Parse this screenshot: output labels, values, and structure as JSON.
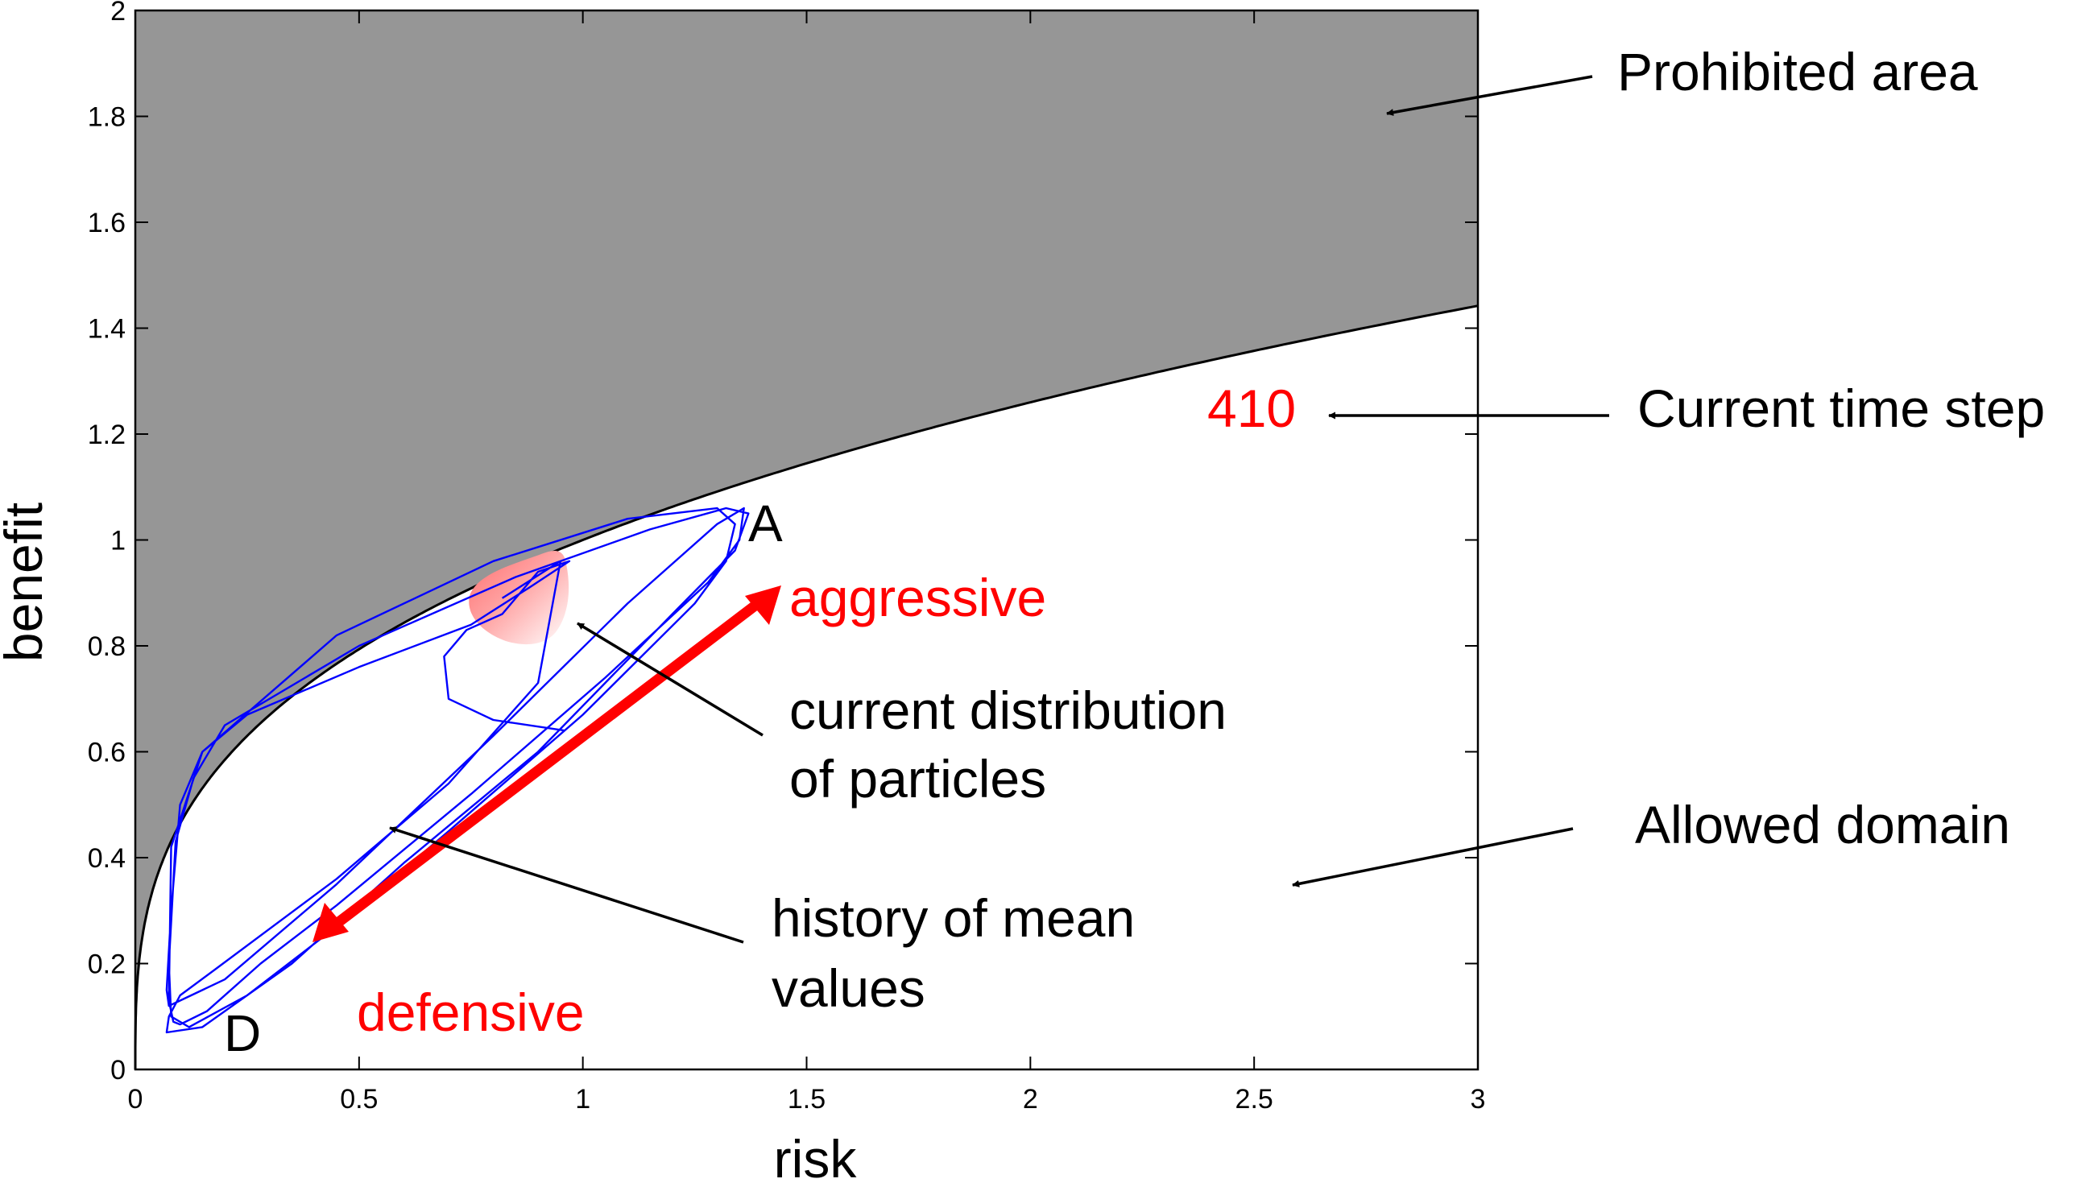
{
  "chart_data": {
    "type": "line",
    "title": "",
    "xlabel": "risk",
    "ylabel": "benefit",
    "xlim": [
      0,
      3
    ],
    "ylim": [
      0,
      2
    ],
    "grid": false,
    "xticks": [
      0,
      0.5,
      1,
      1.5,
      2,
      2.5,
      3
    ],
    "xtick_labels": [
      "0",
      "0.5",
      "1",
      "1.5",
      "2",
      "2.5",
      "3"
    ],
    "yticks": [
      0,
      0.2,
      0.4,
      0.6,
      0.8,
      1,
      1.2,
      1.4,
      1.6,
      1.8,
      2
    ],
    "ytick_labels": [
      "0",
      "0.2",
      "0.4",
      "0.6",
      "0.8",
      "1",
      "1.2",
      "1.4",
      "1.6",
      "1.8",
      "2"
    ],
    "regions": [
      {
        "name": "Prohibited area",
        "description": "benefit above boundary curve b = r^(1/3)",
        "color": "#969696"
      },
      {
        "name": "Allowed domain",
        "description": "benefit below boundary curve",
        "color": "#ffffff"
      }
    ],
    "boundary": {
      "formula": "benefit = risk^(1/3)",
      "x": [
        0,
        0.01,
        0.05,
        0.1,
        0.2,
        0.3,
        0.5,
        0.75,
        1,
        1.5,
        2,
        2.5,
        3
      ],
      "y": [
        0,
        0.215,
        0.368,
        0.464,
        0.585,
        0.669,
        0.794,
        0.909,
        1.0,
        1.145,
        1.26,
        1.357,
        1.442
      ]
    },
    "series": [
      {
        "name": "history of mean values",
        "color": "#0000ff",
        "x": [
          0.96,
          0.8,
          0.7,
          0.69,
          0.74,
          0.82,
          0.9,
          0.97,
          0.88,
          0.75,
          0.5,
          0.25,
          0.15,
          0.1,
          0.08,
          0.07,
          0.075,
          0.1,
          0.2,
          0.45,
          0.8,
          1.1,
          1.3,
          1.36,
          1.35,
          1.28,
          1.05,
          0.75,
          0.45,
          0.28,
          0.16,
          0.1,
          0.085,
          0.075,
          0.08,
          0.15,
          0.45,
          0.8,
          1.1,
          1.3,
          1.34,
          1.32,
          1.25,
          1.0,
          0.7,
          0.45,
          0.25,
          0.12,
          0.08,
          0.075,
          0.09,
          0.13,
          0.2,
          0.5,
          0.85,
          1.15,
          1.32,
          1.37,
          1.34,
          1.2,
          0.9,
          0.6,
          0.35,
          0.15,
          0.07,
          0.075,
          0.1,
          0.18,
          0.45,
          0.7,
          0.9,
          0.95,
          0.82
        ],
        "y": [
          0.64,
          0.66,
          0.7,
          0.78,
          0.83,
          0.86,
          0.94,
          0.96,
          0.91,
          0.84,
          0.76,
          0.67,
          0.6,
          0.5,
          0.3,
          0.15,
          0.12,
          0.13,
          0.17,
          0.35,
          0.63,
          0.88,
          1.03,
          1.06,
          1.0,
          0.92,
          0.74,
          0.52,
          0.31,
          0.2,
          0.11,
          0.085,
          0.09,
          0.13,
          0.42,
          0.6,
          0.82,
          0.96,
          1.04,
          1.06,
          1.03,
          0.96,
          0.88,
          0.67,
          0.45,
          0.27,
          0.14,
          0.08,
          0.1,
          0.2,
          0.43,
          0.55,
          0.65,
          0.8,
          0.93,
          1.02,
          1.06,
          1.05,
          0.98,
          0.86,
          0.6,
          0.39,
          0.2,
          0.08,
          0.07,
          0.1,
          0.14,
          0.19,
          0.36,
          0.54,
          0.73,
          0.96,
          0.89
        ]
      }
    ],
    "particle_cloud": {
      "name": "current distribution of particles",
      "center": [
        0.82,
        0.9
      ],
      "color_from": "#ff6e6e",
      "color_to": "#ffffff"
    },
    "annotations": [
      {
        "id": "prohibited",
        "text": "Prohibited area",
        "color": "#000000"
      },
      {
        "id": "time_label",
        "text": "Current time step",
        "color": "#000000"
      },
      {
        "id": "time_value",
        "text": "410",
        "color": "#ff0000"
      },
      {
        "id": "allowed",
        "text": "Allowed domain",
        "color": "#000000"
      },
      {
        "id": "particles_1",
        "text": "current distribution",
        "color": "#000000"
      },
      {
        "id": "particles_2",
        "text": "of particles",
        "color": "#000000"
      },
      {
        "id": "history_1",
        "text": "history of mean",
        "color": "#000000"
      },
      {
        "id": "history_2",
        "text": "values",
        "color": "#000000"
      },
      {
        "id": "aggressive",
        "text": "aggressive",
        "color": "#ff0000"
      },
      {
        "id": "defensive",
        "text": "defensive",
        "color": "#ff0000"
      },
      {
        "id": "point_A",
        "text": "A",
        "color": "#000000"
      },
      {
        "id": "point_D",
        "text": "D",
        "color": "#000000"
      }
    ],
    "time_step": 410
  },
  "labels": {
    "xlabel": "risk",
    "ylabel": "benefit",
    "prohibited": "Prohibited area",
    "current_time_step": "Current time step",
    "time_value": "410",
    "allowed": "Allowed domain",
    "particles_line1": "current distribution",
    "particles_line2": "of particles",
    "history_line1": "history of mean",
    "history_line2": "values",
    "aggressive": "aggressive",
    "defensive": "defensive",
    "point_a": "A",
    "point_d": "D"
  },
  "colors": {
    "prohibited_fill": "#969696",
    "trajectory": "#0000ff",
    "accent_red": "#ff0000",
    "axis": "#000000"
  }
}
